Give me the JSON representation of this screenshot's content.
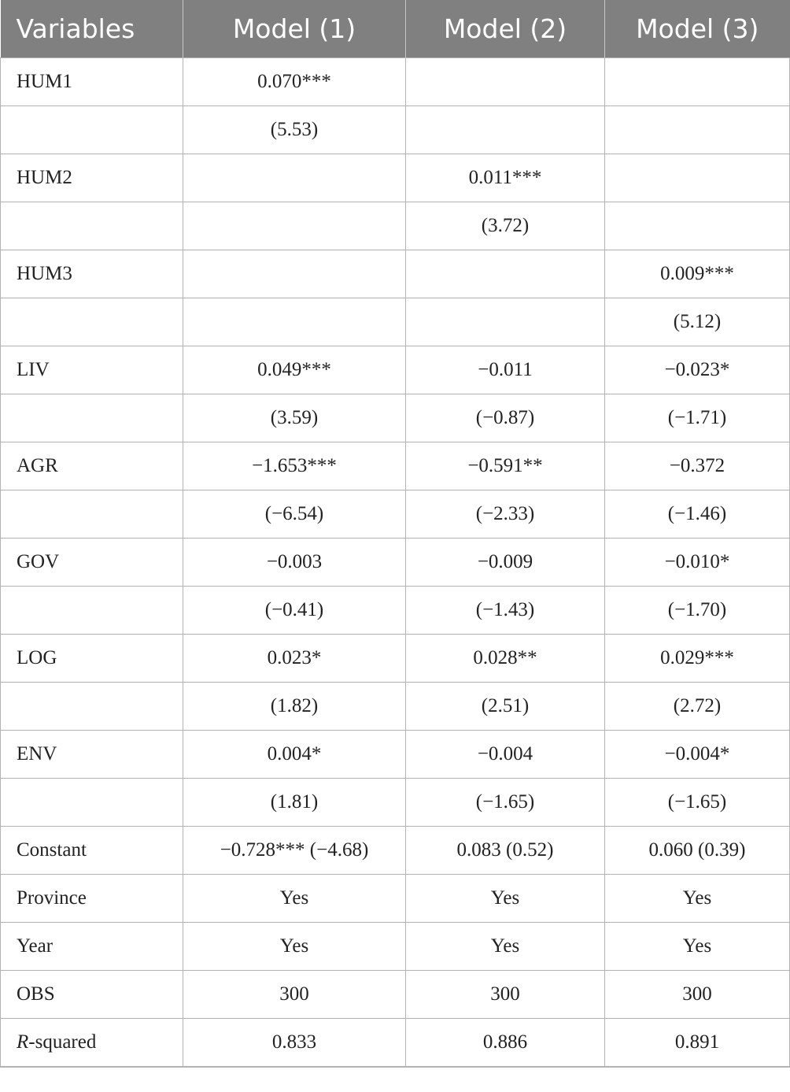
{
  "header": [
    "Variables",
    "Model (1)",
    "Model (2)",
    "Model (3)"
  ],
  "rows": [
    [
      "HUM1",
      "0.070***",
      "",
      ""
    ],
    [
      "",
      "(5.53)",
      "",
      ""
    ],
    [
      "HUM2",
      "",
      "0.011***",
      ""
    ],
    [
      "",
      "",
      "(3.72)",
      ""
    ],
    [
      "HUM3",
      "",
      "",
      "0.009***"
    ],
    [
      "",
      "",
      "",
      "(5.12)"
    ],
    [
      "LIV",
      "0.049***",
      "−0.011",
      "−0.023*"
    ],
    [
      "",
      "(3.59)",
      "(−0.87)",
      "(−1.71)"
    ],
    [
      "AGR",
      "−1.653***",
      "−0.591**",
      "−0.372"
    ],
    [
      "",
      "(−6.54)",
      "(−2.33)",
      "(−1.46)"
    ],
    [
      "GOV",
      "−0.003",
      "−0.009",
      "−0.010*"
    ],
    [
      "",
      "(−0.41)",
      "(−1.43)",
      "(−1.70)"
    ],
    [
      "LOG",
      "0.023*",
      "0.028**",
      "0.029***"
    ],
    [
      "",
      "(1.82)",
      "(2.51)",
      "(2.72)"
    ],
    [
      "ENV",
      "0.004*",
      "−0.004",
      "−0.004*"
    ],
    [
      "",
      "(1.81)",
      "(−1.65)",
      "(−1.65)"
    ],
    [
      "Constant",
      "−0.728*** (−4.68)",
      "0.083 (0.52)",
      "0.060 (0.39)"
    ],
    [
      "Province",
      "Yes",
      "Yes",
      "Yes"
    ],
    [
      "Year",
      "Yes",
      "Yes",
      "Yes"
    ],
    [
      "OBS",
      "300",
      "300",
      "300"
    ],
    [
      "",
      "0.833",
      "0.886",
      "0.891"
    ]
  ],
  "rsq_label": {
    "italic": "R",
    "rest": "-squared"
  }
}
